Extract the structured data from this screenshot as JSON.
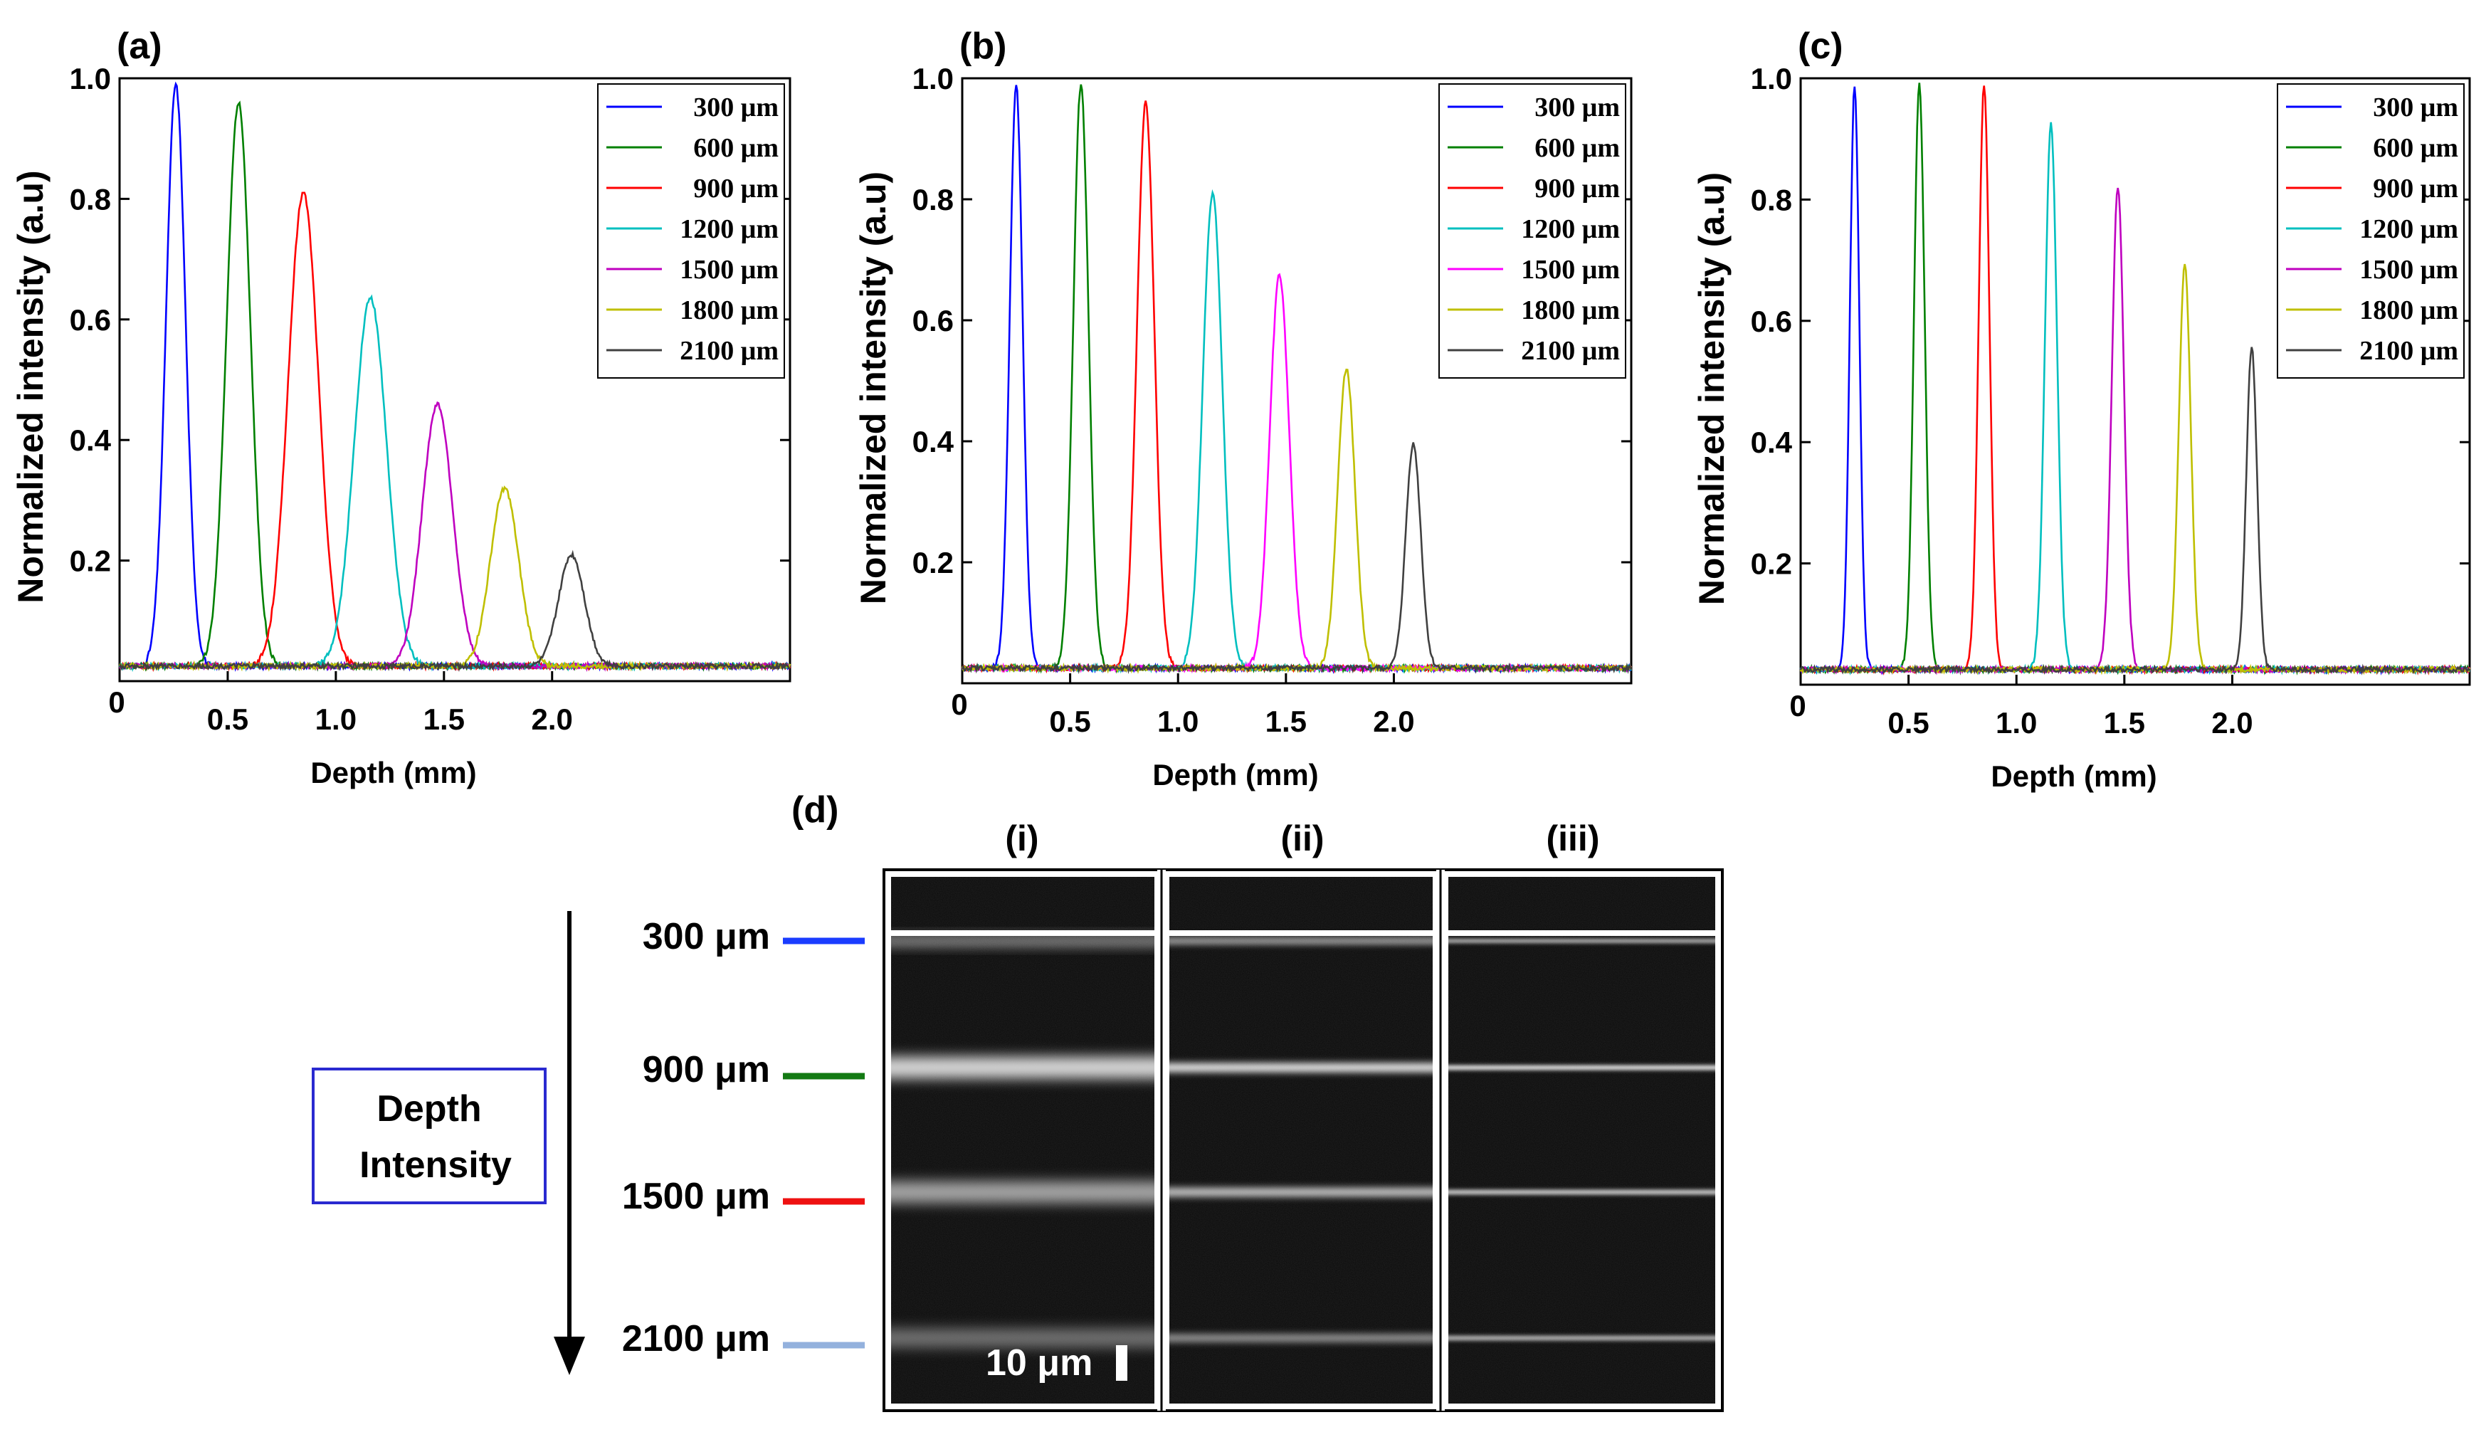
{
  "chart_data": [
    {
      "type": "line",
      "panel_label": "(a)",
      "xlabel": "Depth (mm)",
      "ylabel": "Normalized intensity (a.u)",
      "xlim": [
        0,
        3.1
      ],
      "ylim": [
        0,
        1.0
      ],
      "x_ticks": [
        "0.5",
        "1.0",
        "1.5",
        "2.0"
      ],
      "x_origin_label": "0",
      "y_ticks": [
        "0.2",
        "0.4",
        "0.6",
        "0.8",
        "1.0"
      ],
      "legend_position": "top-right",
      "baseline": 0.025,
      "series": [
        {
          "name": "300 μm",
          "color": "#0000ff",
          "peak_depth": 0.26,
          "peak_value": 0.99,
          "width": 0.045
        },
        {
          "name": "600 μm",
          "color": "#008000",
          "peak_depth": 0.55,
          "peak_value": 0.96,
          "width": 0.055
        },
        {
          "name": "900 μm",
          "color": "#ff0000",
          "peak_depth": 0.85,
          "peak_value": 0.81,
          "width": 0.07
        },
        {
          "name": "1200 μm",
          "color": "#00bfbf",
          "peak_depth": 1.16,
          "peak_value": 0.635,
          "width": 0.075
        },
        {
          "name": "1500 μm",
          "color": "#bf00bf",
          "peak_depth": 1.47,
          "peak_value": 0.46,
          "width": 0.07
        },
        {
          "name": "1800 μm",
          "color": "#bfbf00",
          "peak_depth": 1.78,
          "peak_value": 0.32,
          "width": 0.065
        },
        {
          "name": "2100 μm",
          "color": "#404040",
          "peak_depth": 2.09,
          "peak_value": 0.21,
          "width": 0.06
        }
      ]
    },
    {
      "type": "line",
      "panel_label": "(b)",
      "xlabel": "Depth (mm)",
      "ylabel": "Normalized intensity (a.u)",
      "xlim": [
        0,
        3.1
      ],
      "ylim": [
        0,
        1.0
      ],
      "x_ticks": [
        "0.5",
        "1.0",
        "1.5",
        "2.0"
      ],
      "x_origin_label": "0",
      "y_ticks": [
        "0.2",
        "0.4",
        "0.6",
        "0.8",
        "1.0"
      ],
      "legend_position": "top-right",
      "baseline": 0.025,
      "series": [
        {
          "name": "300 μm",
          "color": "#0000ff",
          "peak_depth": 0.25,
          "peak_value": 0.99,
          "width": 0.03
        },
        {
          "name": "600 μm",
          "color": "#008000",
          "peak_depth": 0.55,
          "peak_value": 0.99,
          "width": 0.035
        },
        {
          "name": "900 μm",
          "color": "#ff0000",
          "peak_depth": 0.85,
          "peak_value": 0.96,
          "width": 0.04
        },
        {
          "name": "1200 μm",
          "color": "#00bfbf",
          "peak_depth": 1.16,
          "peak_value": 0.81,
          "width": 0.045
        },
        {
          "name": "1500 μm",
          "color": "#ff00ff",
          "peak_depth": 1.47,
          "peak_value": 0.675,
          "width": 0.045
        },
        {
          "name": "1800 μm",
          "color": "#bfbf00",
          "peak_depth": 1.78,
          "peak_value": 0.52,
          "width": 0.04
        },
        {
          "name": "2100 μm",
          "color": "#404040",
          "peak_depth": 2.09,
          "peak_value": 0.395,
          "width": 0.035
        }
      ]
    },
    {
      "type": "line",
      "panel_label": "(c)",
      "xlabel": "Depth (mm)",
      "ylabel": "Normalized intensity (a.u)",
      "xlim": [
        0,
        3.1
      ],
      "ylim": [
        0,
        1.0
      ],
      "x_ticks": [
        "0.5",
        "1.0",
        "1.5",
        "2.0"
      ],
      "x_origin_label": "0",
      "y_ticks": [
        "0.2",
        "0.4",
        "0.6",
        "0.8",
        "1.0"
      ],
      "legend_position": "top-right",
      "baseline": 0.025,
      "series": [
        {
          "name": "300 μm",
          "color": "#0000ff",
          "peak_depth": 0.25,
          "peak_value": 0.99,
          "width": 0.022
        },
        {
          "name": "600 μm",
          "color": "#008000",
          "peak_depth": 0.55,
          "peak_value": 0.99,
          "width": 0.025
        },
        {
          "name": "900 μm",
          "color": "#ff0000",
          "peak_depth": 0.85,
          "peak_value": 0.99,
          "width": 0.025
        },
        {
          "name": "1200 μm",
          "color": "#00bfbf",
          "peak_depth": 1.16,
          "peak_value": 0.925,
          "width": 0.028
        },
        {
          "name": "1500 μm",
          "color": "#bf00bf",
          "peak_depth": 1.47,
          "peak_value": 0.82,
          "width": 0.028
        },
        {
          "name": "1800 μm",
          "color": "#bfbf00",
          "peak_depth": 1.78,
          "peak_value": 0.69,
          "width": 0.028
        },
        {
          "name": "2100 μm",
          "color": "#404040",
          "peak_depth": 2.09,
          "peak_value": 0.555,
          "width": 0.025
        }
      ]
    }
  ],
  "panel_d": {
    "label": "(d)",
    "columns": [
      "(i)",
      "(ii)",
      "(iii)"
    ],
    "box_label_line1": "Depth",
    "box_label_line2": "Intensity",
    "depth_markers": [
      {
        "label": "300 μm",
        "color": "#1a3cff"
      },
      {
        "label": "900 μm",
        "color": "#137a13"
      },
      {
        "label": "1500 μm",
        "color": "#ee1111"
      },
      {
        "label": "2100 μm",
        "color": "#93b1dd"
      }
    ],
    "scale_bar": "10 μm",
    "band_brightness": [
      [
        1.0,
        0.85,
        0.65,
        0.45
      ],
      [
        1.0,
        0.95,
        0.8,
        0.65
      ],
      [
        1.0,
        1.0,
        0.9,
        0.8
      ]
    ]
  }
}
